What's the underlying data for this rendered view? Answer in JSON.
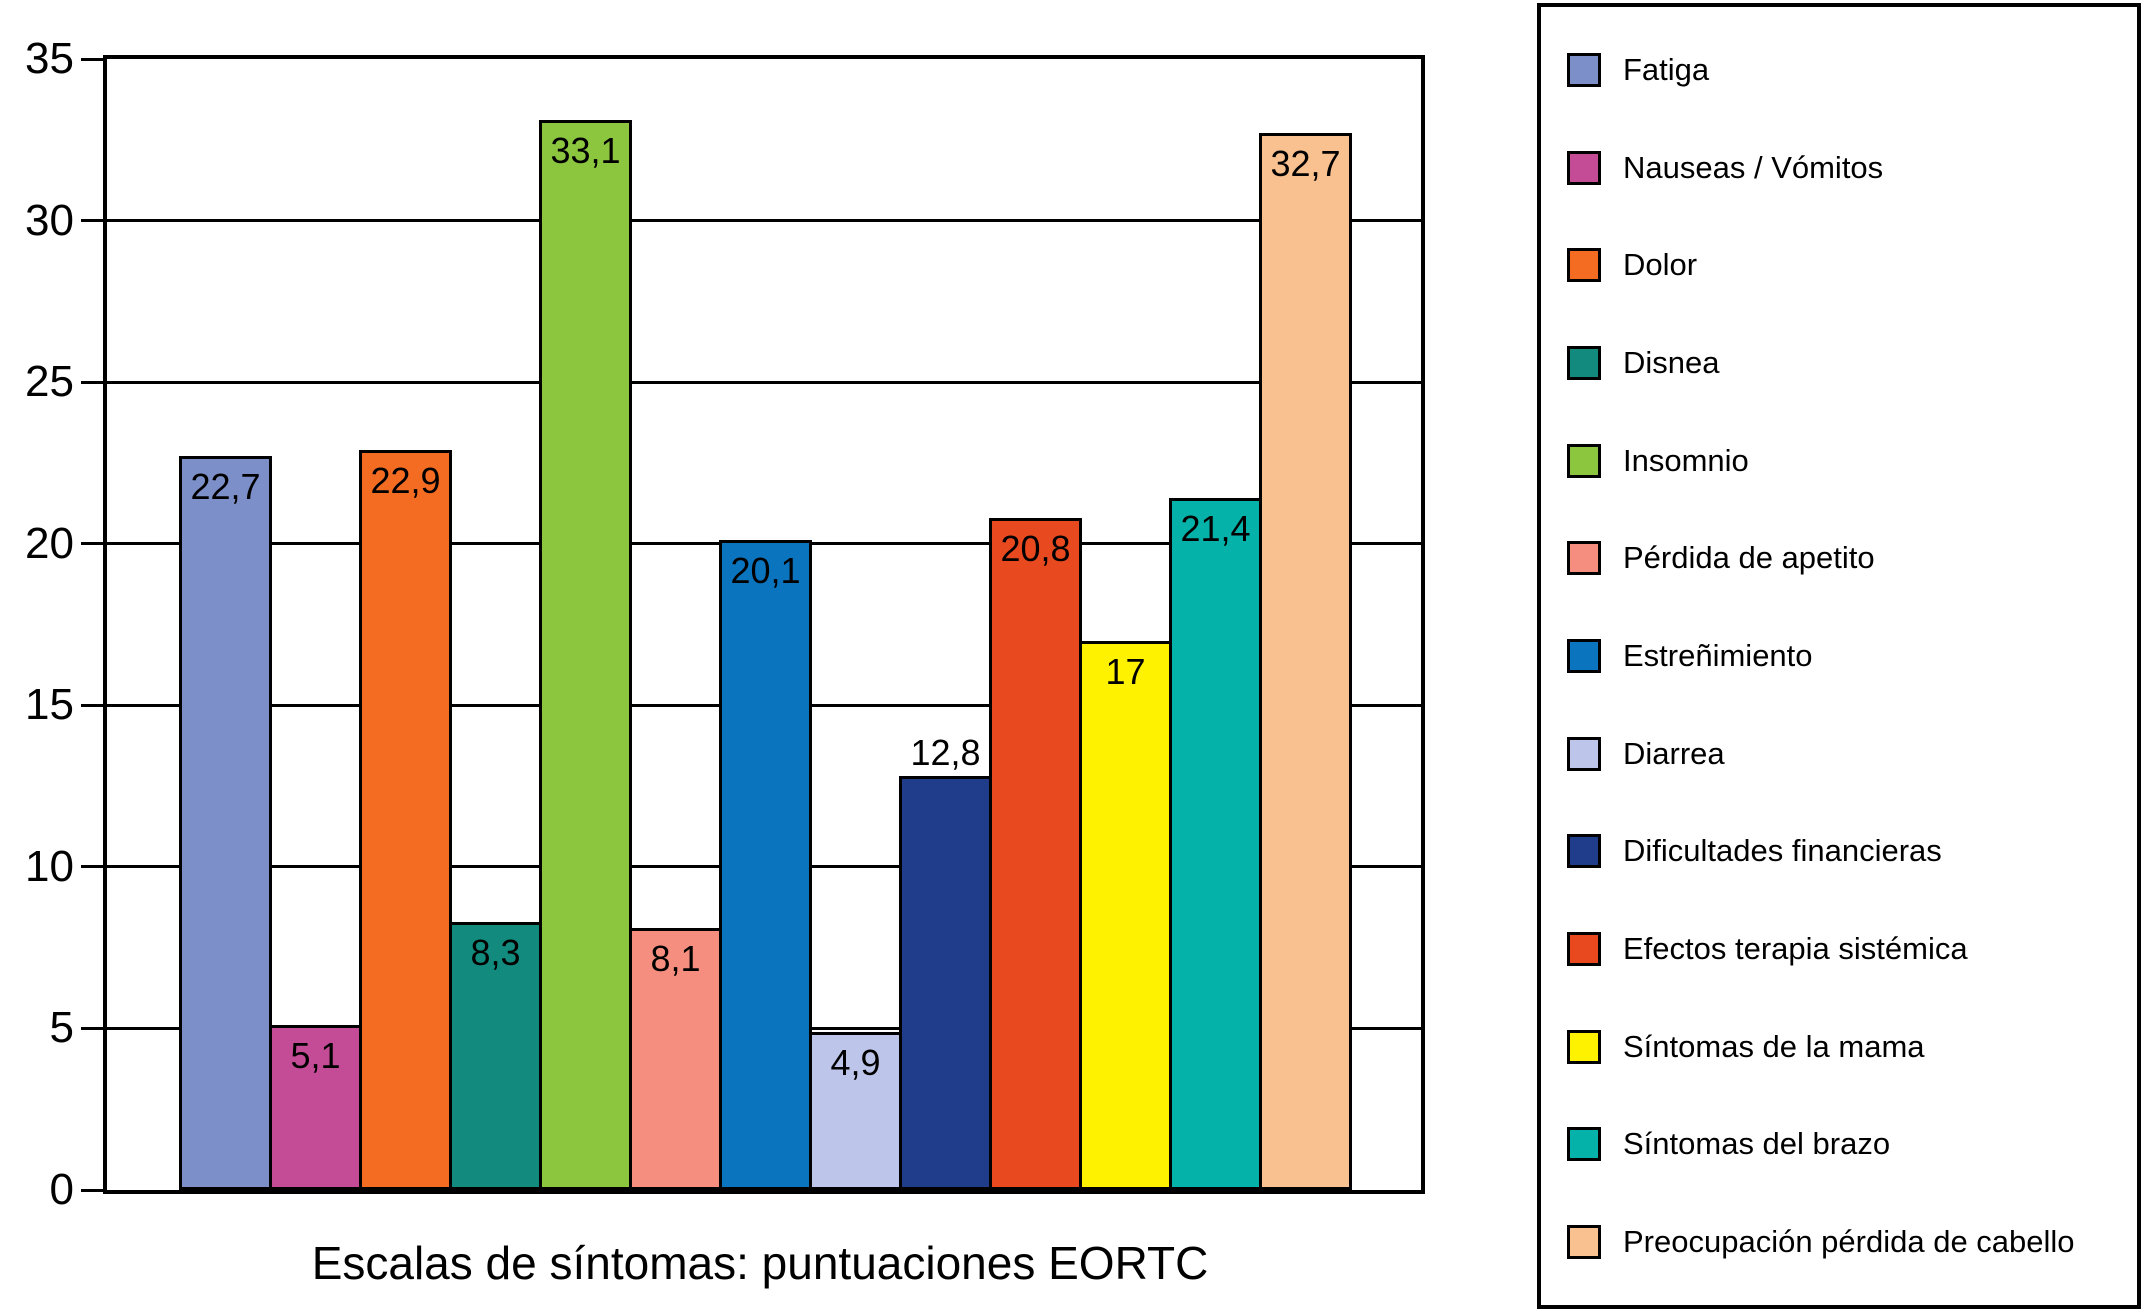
{
  "chart_data": {
    "type": "bar",
    "title": "Escalas de síntomas: puntuaciones EORTC",
    "xlabel": "",
    "ylabel": "",
    "ylim": [
      0,
      35
    ],
    "yticks": [
      0,
      5,
      10,
      15,
      20,
      25,
      30,
      35
    ],
    "grid": true,
    "legend_position": "right",
    "bars": [
      {
        "label": "Fatiga",
        "value": 22.7,
        "display_value": "22,7",
        "color": "#7D8FC9",
        "value_label_position": "inside"
      },
      {
        "label": "Nauseas / Vómitos",
        "value": 5.1,
        "display_value": "5,1",
        "color": "#C44B96",
        "value_label_position": "inside"
      },
      {
        "label": "Dolor",
        "value": 22.9,
        "display_value": "22,9",
        "color": "#F36C21",
        "value_label_position": "inside"
      },
      {
        "label": "Disnea",
        "value": 8.3,
        "display_value": "8,3",
        "color": "#128A7E",
        "value_label_position": "inside"
      },
      {
        "label": "Insomnio",
        "value": 33.1,
        "display_value": "33,1",
        "color": "#8CC63F",
        "value_label_position": "inside"
      },
      {
        "label": "Pérdida de apetito",
        "value": 8.1,
        "display_value": "8,1",
        "color": "#F58E7E",
        "value_label_position": "inside"
      },
      {
        "label": "Estreñimiento",
        "value": 20.1,
        "display_value": "20,1",
        "color": "#0B74BE",
        "value_label_position": "inside"
      },
      {
        "label": "Diarrea",
        "value": 4.9,
        "display_value": "4,9",
        "color": "#BEC5EA",
        "value_label_position": "inside"
      },
      {
        "label": "Dificultades financieras",
        "value": 12.8,
        "display_value": "12,8",
        "color": "#1F3D8B",
        "value_label_position": "above"
      },
      {
        "label": "Efectos terapia sistémica",
        "value": 20.8,
        "display_value": "20,8",
        "color": "#E8491F",
        "value_label_position": "inside"
      },
      {
        "label": "Síntomas de la mama",
        "value": 17,
        "display_value": "17",
        "color": "#FFF200",
        "value_label_position": "inside"
      },
      {
        "label": "Síntomas del brazo",
        "value": 21.4,
        "display_value": "21,4",
        "color": "#04B2AA",
        "value_label_position": "inside"
      },
      {
        "label": "Preocupación pérdida de cabello",
        "value": 32.7,
        "display_value": "32,7",
        "color": "#F9C18F",
        "value_label_position": "inside"
      }
    ]
  }
}
